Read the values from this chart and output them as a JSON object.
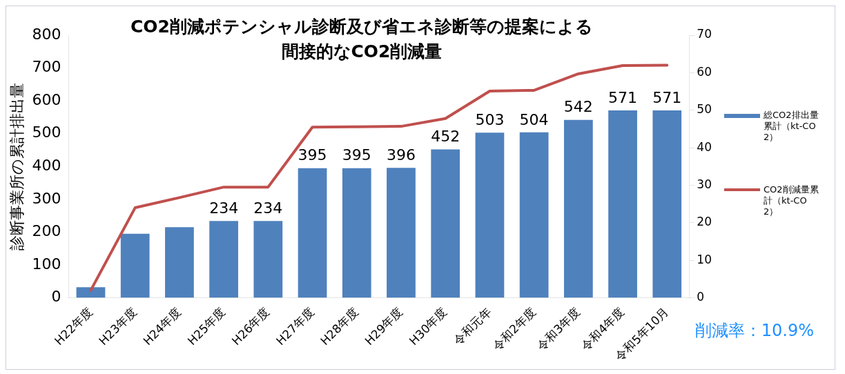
{
  "chart_data": {
    "type": "bar",
    "title": "CO2削減ポテンシャル診断及び省エネ診断等の提案による間接的なCO2削減量",
    "ylabel": "診断事業所の累計排出量",
    "categories": [
      "H22年度",
      "H23年度",
      "H24年度",
      "H25年度",
      "H26年度",
      "H27年度",
      "H28年度",
      "H29年度",
      "H30年度",
      "令和元年",
      "令和2年度",
      "令和3年度",
      "令和4年度",
      "令和5年10月"
    ],
    "series": [
      {
        "name": "総CO2排出量累計（kt-CO2）",
        "color": "#4f81bd",
        "values": [
          32,
          195,
          215,
          234,
          234,
          395,
          395,
          396,
          452,
          503,
          504,
          542,
          571,
          571
        ],
        "value_labels": [
          null,
          null,
          null,
          "234",
          "234",
          "395",
          "395",
          "396",
          "452",
          "503",
          "504",
          "542",
          "571",
          "571"
        ]
      },
      {
        "name": "CO2削減量累計（kt-CO2）",
        "type": "line",
        "axis": "y2",
        "color": "#c0504d",
        "values": [
          2,
          24,
          26.7,
          29.5,
          29.5,
          45.5,
          45.6,
          45.7,
          47.8,
          55.1,
          55.3,
          59.7,
          61.9,
          62
        ]
      }
    ],
    "ylim": [
      0,
      800
    ],
    "yticks": [
      0,
      100,
      200,
      300,
      400,
      500,
      600,
      700,
      800
    ],
    "y2lim": [
      0,
      70
    ],
    "y2ticks": [
      0,
      10,
      20,
      30,
      40,
      50,
      60,
      70
    ],
    "grid": false,
    "legend": "right",
    "marker": "none",
    "annotations": [
      "削減率：10.9%"
    ]
  }
}
